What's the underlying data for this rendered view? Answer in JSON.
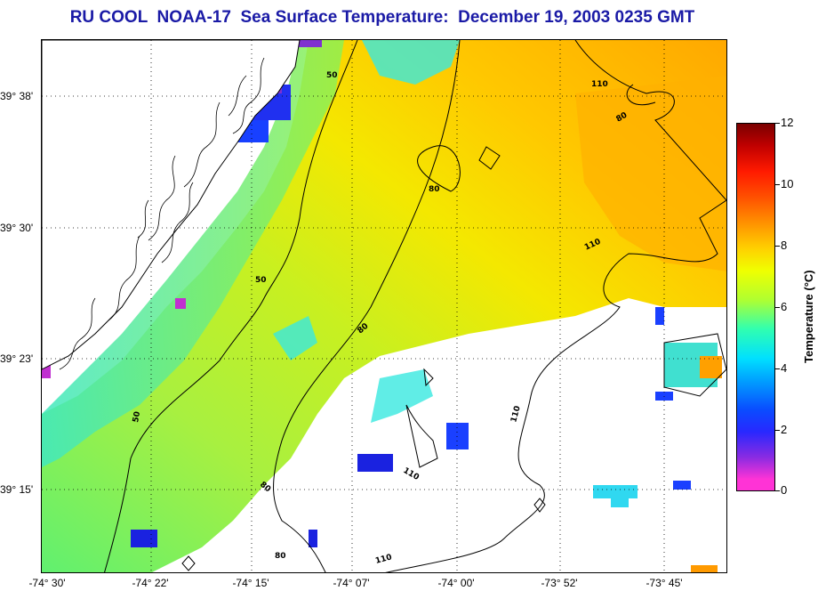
{
  "title": "RU COOL  NOAA-17  Sea Surface Temperature:  December 19, 2003 0235 GMT",
  "latitude_labels": [
    "39° 38'",
    "39° 30'",
    "39° 23'",
    "39° 15'"
  ],
  "longitude_labels": [
    "-74° 30'",
    "-74° 22'",
    "-74° 15'",
    "-74° 07'",
    "-74° 00'",
    "-73° 52'",
    "-73° 45'"
  ],
  "contour_labels": [
    "50",
    "50",
    "50",
    "80",
    "80",
    "80",
    "80",
    "80",
    "110",
    "110",
    "110",
    "110",
    "110"
  ],
  "colorbar": {
    "label": "Temperature (°C)",
    "ticks": [
      "12",
      "10",
      "8",
      "6",
      "4",
      "2",
      "0"
    ],
    "min": 0,
    "max": 12
  },
  "colors": {
    "title": "#1a1aa6",
    "land": "#ffffff",
    "coastline": "#000000",
    "cloud_or_nodata": "#ffffff"
  }
}
